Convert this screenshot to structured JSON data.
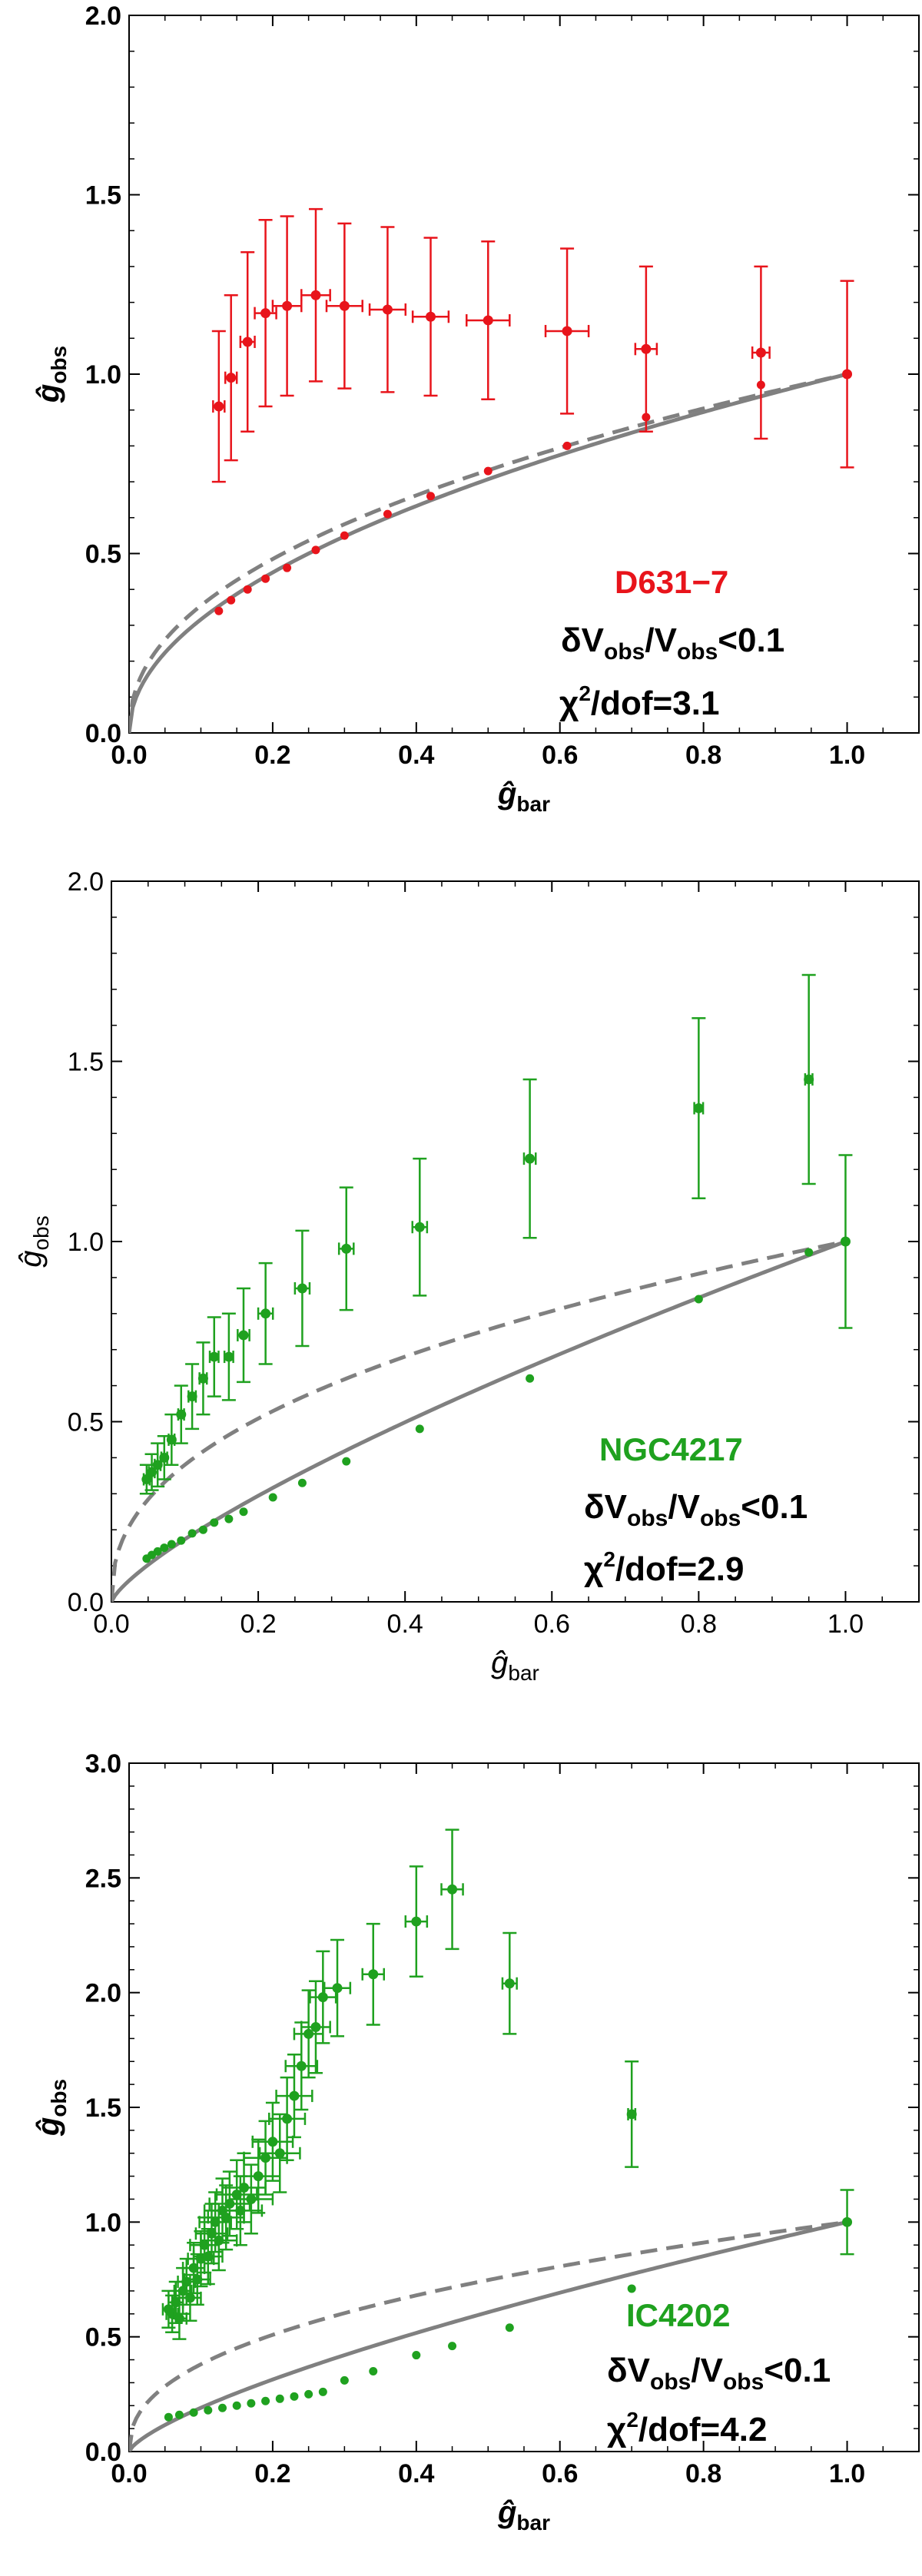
{
  "chart_data": [
    {
      "type": "scatter",
      "galaxy": "D631−7",
      "color": "#e8141b",
      "xlabel_main": "ĝ",
      "xlabel_sub": "bar",
      "ylabel_main": "ĝ",
      "ylabel_sub": "obs",
      "bold_labels": true,
      "xlim": [
        0,
        1.1
      ],
      "ylim": [
        0,
        2.0
      ],
      "x_ticks": [
        "0.0",
        "0.2",
        "0.4",
        "0.6",
        "0.8",
        "1.0"
      ],
      "y_ticks": [
        "0.0",
        "0.5",
        "1.0",
        "1.5",
        "2.0"
      ],
      "y_tick_step": 0.5,
      "condition_main": "δV",
      "condition_sub1": "obs",
      "condition_mid": "/V",
      "condition_sub2": "obs",
      "condition_end": "<0.1",
      "chi_main": "χ",
      "chi_sup": "2",
      "chi_end": "/dof=3.1",
      "observed": {
        "x": [
          0.125,
          0.142,
          0.165,
          0.19,
          0.22,
          0.26,
          0.3,
          0.36,
          0.42,
          0.5,
          0.61,
          0.72,
          0.88,
          1.0
        ],
        "y": [
          0.91,
          0.99,
          1.09,
          1.17,
          1.19,
          1.22,
          1.19,
          1.18,
          1.16,
          1.15,
          1.12,
          1.07,
          1.06,
          1.0
        ],
        "xerr": [
          0.008,
          0.008,
          0.01,
          0.015,
          0.02,
          0.02,
          0.025,
          0.025,
          0.025,
          0.03,
          0.03,
          0.015,
          0.012,
          0.0
        ],
        "yerr": [
          0.21,
          0.23,
          0.25,
          0.26,
          0.25,
          0.24,
          0.23,
          0.23,
          0.22,
          0.22,
          0.23,
          0.23,
          0.24,
          0.26
        ]
      },
      "model": {
        "x": [
          0.125,
          0.142,
          0.165,
          0.19,
          0.22,
          0.26,
          0.3,
          0.36,
          0.42,
          0.5,
          0.61,
          0.72,
          0.88
        ],
        "y": [
          0.34,
          0.37,
          0.4,
          0.43,
          0.46,
          0.51,
          0.55,
          0.61,
          0.66,
          0.73,
          0.8,
          0.88,
          0.97
        ]
      },
      "solid_exponent": 0.5,
      "dashed_exponent": 0.45
    },
    {
      "type": "scatter",
      "galaxy": "NGC4217",
      "color": "#1fa11f",
      "xlabel_main": "ĝ",
      "xlabel_sub": "bar",
      "ylabel_main": "ĝ",
      "ylabel_sub": "obs",
      "bold_labels": false,
      "xlim": [
        0,
        1.1
      ],
      "ylim": [
        0,
        2.0
      ],
      "x_ticks": [
        "0.0",
        "0.2",
        "0.4",
        "0.6",
        "0.8",
        "1.0"
      ],
      "y_ticks": [
        "0.0",
        "0.5",
        "1.0",
        "1.5",
        "2.0"
      ],
      "y_tick_step": 0.5,
      "condition_main": "δV",
      "condition_sub1": "obs",
      "condition_mid": "/V",
      "condition_sub2": "obs",
      "condition_end": "<0.1",
      "chi_main": "χ",
      "chi_sup": "2",
      "chi_end": "/dof=2.9",
      "observed": {
        "x": [
          0.048,
          0.055,
          0.063,
          0.072,
          0.082,
          0.095,
          0.11,
          0.125,
          0.14,
          0.16,
          0.18,
          0.21,
          0.26,
          0.32,
          0.42,
          0.57,
          0.8,
          0.95,
          1.0
        ],
        "y": [
          0.34,
          0.36,
          0.38,
          0.4,
          0.45,
          0.52,
          0.57,
          0.62,
          0.68,
          0.68,
          0.74,
          0.8,
          0.87,
          0.98,
          1.04,
          1.23,
          1.37,
          1.45,
          1.0
        ],
        "xerr": [
          0.004,
          0.004,
          0.004,
          0.004,
          0.004,
          0.004,
          0.005,
          0.005,
          0.006,
          0.006,
          0.008,
          0.01,
          0.01,
          0.01,
          0.01,
          0.008,
          0.006,
          0.005,
          0.0
        ],
        "yerr": [
          0.04,
          0.05,
          0.06,
          0.06,
          0.07,
          0.08,
          0.09,
          0.1,
          0.11,
          0.12,
          0.13,
          0.14,
          0.16,
          0.17,
          0.19,
          0.22,
          0.25,
          0.29,
          0.24
        ]
      },
      "model": {
        "x": [
          0.048,
          0.055,
          0.063,
          0.072,
          0.082,
          0.095,
          0.11,
          0.125,
          0.14,
          0.16,
          0.18,
          0.22,
          0.26,
          0.32,
          0.42,
          0.57,
          0.8,
          0.95
        ],
        "y": [
          0.12,
          0.13,
          0.14,
          0.15,
          0.16,
          0.17,
          0.19,
          0.2,
          0.22,
          0.23,
          0.25,
          0.29,
          0.33,
          0.39,
          0.48,
          0.62,
          0.84,
          0.97
        ]
      },
      "solid_exponent": 0.76,
      "dashed_exponent": 0.42
    },
    {
      "type": "scatter",
      "galaxy": "IC4202",
      "color": "#1fa11f",
      "xlabel_main": "ĝ",
      "xlabel_sub": "bar",
      "ylabel_main": "ĝ",
      "ylabel_sub": "obs",
      "bold_labels": true,
      "xlim": [
        0,
        1.1
      ],
      "ylim": [
        0,
        3.0
      ],
      "x_ticks": [
        "0.0",
        "0.2",
        "0.4",
        "0.6",
        "0.8",
        "1.0"
      ],
      "y_ticks": [
        "0.0",
        "0.5",
        "1.0",
        "1.5",
        "2.0",
        "2.5",
        "3.0"
      ],
      "y_tick_step": 0.5,
      "condition_main": "δV",
      "condition_sub1": "obs",
      "condition_mid": "/V",
      "condition_sub2": "obs",
      "condition_end": "<0.1",
      "chi_main": "χ",
      "chi_sup": "2",
      "chi_end": "/dof=4.2",
      "observed": {
        "x": [
          0.055,
          0.06,
          0.065,
          0.07,
          0.075,
          0.08,
          0.085,
          0.09,
          0.095,
          0.1,
          0.105,
          0.11,
          0.115,
          0.12,
          0.125,
          0.13,
          0.135,
          0.14,
          0.15,
          0.155,
          0.16,
          0.17,
          0.18,
          0.19,
          0.2,
          0.21,
          0.22,
          0.23,
          0.24,
          0.25,
          0.26,
          0.27,
          0.29,
          0.34,
          0.4,
          0.45,
          0.53,
          0.7,
          1.0
        ],
        "y": [
          0.62,
          0.6,
          0.65,
          0.58,
          0.7,
          0.74,
          0.67,
          0.8,
          0.75,
          0.84,
          0.9,
          0.85,
          0.95,
          1.0,
          0.92,
          1.05,
          1.02,
          1.08,
          1.12,
          1.05,
          1.15,
          1.1,
          1.2,
          1.28,
          1.35,
          1.3,
          1.45,
          1.55,
          1.68,
          1.82,
          1.85,
          1.98,
          2.02,
          2.08,
          2.31,
          2.45,
          2.04,
          1.47,
          1.0
        ],
        "xerr": [
          0.008,
          0.008,
          0.01,
          0.01,
          0.012,
          0.012,
          0.015,
          0.015,
          0.018,
          0.018,
          0.02,
          0.02,
          0.022,
          0.022,
          0.025,
          0.025,
          0.025,
          0.028,
          0.028,
          0.03,
          0.03,
          0.03,
          0.03,
          0.03,
          0.028,
          0.028,
          0.025,
          0.025,
          0.022,
          0.02,
          0.02,
          0.018,
          0.018,
          0.015,
          0.015,
          0.015,
          0.01,
          0.005,
          0.0
        ],
        "yerr": [
          0.08,
          0.08,
          0.09,
          0.09,
          0.1,
          0.1,
          0.1,
          0.11,
          0.11,
          0.12,
          0.12,
          0.12,
          0.13,
          0.13,
          0.13,
          0.14,
          0.14,
          0.14,
          0.15,
          0.15,
          0.15,
          0.15,
          0.16,
          0.16,
          0.17,
          0.17,
          0.18,
          0.18,
          0.19,
          0.19,
          0.2,
          0.2,
          0.21,
          0.22,
          0.24,
          0.26,
          0.22,
          0.23,
          0.14
        ]
      },
      "model": {
        "x": [
          0.055,
          0.07,
          0.09,
          0.11,
          0.13,
          0.15,
          0.17,
          0.19,
          0.21,
          0.23,
          0.25,
          0.27,
          0.3,
          0.34,
          0.4,
          0.45,
          0.53,
          0.7
        ],
        "y": [
          0.15,
          0.16,
          0.17,
          0.18,
          0.19,
          0.2,
          0.21,
          0.22,
          0.23,
          0.24,
          0.25,
          0.26,
          0.31,
          0.35,
          0.42,
          0.46,
          0.54,
          0.71
        ]
      },
      "solid_exponent": 0.72,
      "dashed_exponent": 0.42
    }
  ]
}
